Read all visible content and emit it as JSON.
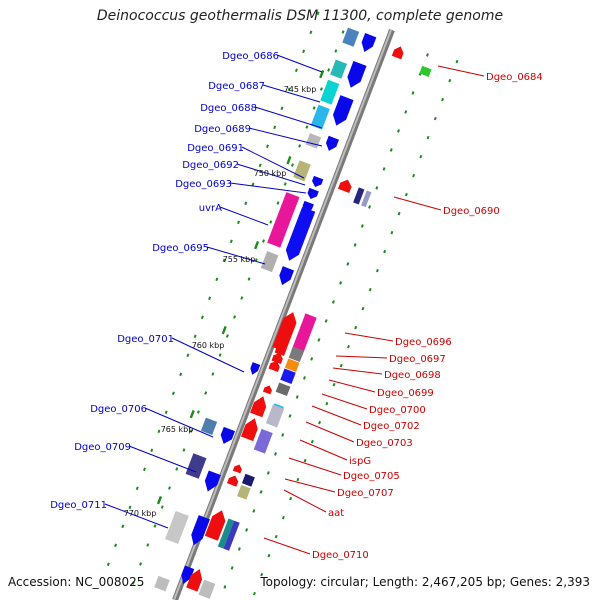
{
  "title": "Deinococcus geothermalis DSM 11300, complete genome",
  "footer": {
    "accession": "Accession: NC_008025",
    "topology": "Topology: circular; Length: 2,467,205 bp; Genes: 2,393"
  },
  "colors": {
    "backbone": "#8c8c8c",
    "left_label": "#0000cc",
    "right_label": "#cc0000",
    "tick": "#1a8c1a"
  },
  "kbp_labels": [
    "745 kbp",
    "750 kbp",
    "755 kbp",
    "760 kbp",
    "765 kbp",
    "770 kbp"
  ],
  "left_genes": [
    "Dgeo_0686",
    "Dgeo_0687",
    "Dgeo_0688",
    "Dgeo_0689",
    "Dgeo_0691",
    "Dgeo_0692",
    "Dgeo_0693",
    "uvrA",
    "Dgeo_0695",
    "Dgeo_0701",
    "Dgeo_0706",
    "Dgeo_0709",
    "Dgeo_0711"
  ],
  "right_genes": [
    "Dgeo_0684",
    "Dgeo_0690",
    "Dgeo_0696",
    "Dgeo_0697",
    "Dgeo_0698",
    "Dgeo_0699",
    "Dgeo_0700",
    "Dgeo_0702",
    "Dgeo_0703",
    "ispG",
    "Dgeo_0705",
    "Dgeo_0707",
    "aat",
    "Dgeo_0710"
  ]
}
